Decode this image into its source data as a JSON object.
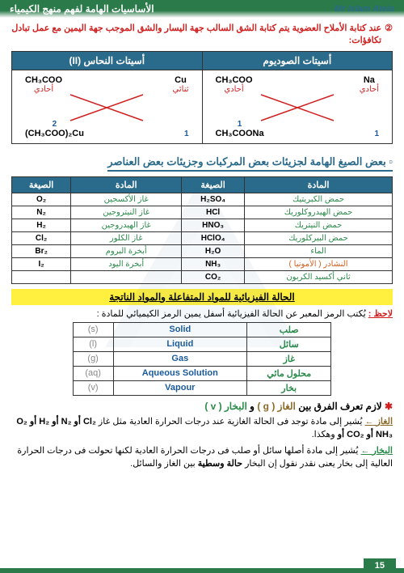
{
  "header": {
    "right": "الأساسيات الهامة لفهم منهج الكيمياء",
    "left": "Mr Islam Ateia"
  },
  "intro": {
    "num": "②",
    "text": "عند كتابة الأملاح العضوية يتم كتابة الشق السالب جهة اليسار والشق الموجب جهة اليمين مع عمل تبادل تكافؤات:"
  },
  "salt_table": {
    "headers": [
      "أسيتات الصوديوم",
      "أسيتات النحاس (II)"
    ],
    "cells": [
      {
        "tl_formula": "CH₃COO",
        "tl_label": "أحادي",
        "tr_formula": "Na",
        "tr_label": "أحادي",
        "bl_num": "1",
        "bl_formula": "CH₃COONa",
        "br_num": "1"
      },
      {
        "tl_formula": "CH₃COO",
        "tl_label": "أحادي",
        "tr_formula": "Cu",
        "tr_label": "ثنائي",
        "bl_num": "2",
        "bl_formula": "(CH₃COO)₂Cu",
        "br_num": "1"
      }
    ]
  },
  "section_title": "بعض الصيغ الهامة لجزيئات بعض المركبات وجزيئات بعض العناصر",
  "comp_table": {
    "headers": [
      "المادة",
      "الصيغة",
      "المادة",
      "الصيغة"
    ],
    "rows": [
      [
        "حمض الكبريتيك",
        "H₂SO₄",
        "غاز الأكسجين",
        "O₂"
      ],
      [
        "حمض الهيدروكلوريك",
        "HCl",
        "غاز النيتروجين",
        "N₂"
      ],
      [
        "حمض النيتريك",
        "HNO₃",
        "غاز الهيدروجين",
        "H₂"
      ],
      [
        "حمض البيركلوريك",
        "HClO₄",
        "غاز الكلور",
        "Cl₂"
      ],
      [
        "الماء",
        "H₂O",
        "أبخرة البروم",
        "Br₂"
      ],
      [
        "النشادر ( الأمونيا )",
        "NH₃",
        "أبخرة اليود",
        "I₂"
      ],
      [
        "ثاني أكسيد الكربون",
        "CO₂",
        "",
        ""
      ]
    ]
  },
  "highlight": "الحالة الفيزيائية للمواد المتفاعلة والمواد الناتجة",
  "note": {
    "label": "لاحظ :",
    "text": "يُكتب الرمز المعبر عن الحالة الفيزيائية أسفل يمين الرمز الكيميائي للمادة :"
  },
  "state_table": {
    "rows": [
      [
        "صلب",
        "Solid",
        "(s)"
      ],
      [
        "سائل",
        "Liquid",
        "(l)"
      ],
      [
        "غاز",
        "Gas",
        "(g)"
      ],
      [
        "محلول مائي",
        "Aqueous Solution",
        "(aq)"
      ],
      [
        "بخار",
        "Vapour",
        "(v)"
      ]
    ]
  },
  "diff": {
    "star": "✱",
    "pre": "لازم تعرف الفرق بين ",
    "gas": "الغاز ( g )",
    "and": " و ",
    "vapor": "البخار ( v )"
  },
  "explain_gas": {
    "label": "الغاز ←",
    "text": " يُشير إلى مادة توجد فى الحالة الغازية عند درجات الحرارة العادية مثل غاز ",
    "list": "O₂ أو H₂ أو N₂ أو Cl₂ أو CO₂ أو NH₃",
    "after": " وهكذا."
  },
  "explain_vapor": {
    "label": "البخار ←",
    "text": " يُشير إلى مادة أصلها سائل أو صلب فى درجات الحرارة العادية لكنها تحولت فى درجات الحرارة العالية إلى بخار يعنى نقدر نقول إن البخار ",
    "bold": "حالة وسطية",
    "after": " بين الغاز والسائل."
  },
  "page_num": "15"
}
